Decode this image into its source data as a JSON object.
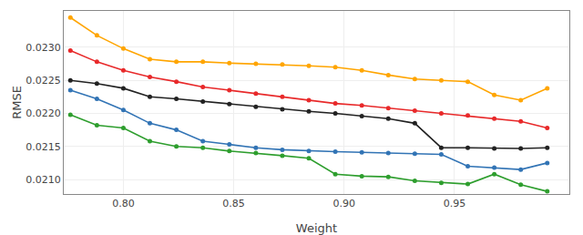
{
  "chart_data": {
    "type": "line",
    "xlabel": "Weight",
    "ylabel": "RMSE",
    "x": [
      0.776,
      0.788,
      0.8,
      0.812,
      0.824,
      0.836,
      0.848,
      0.86,
      0.872,
      0.884,
      0.896,
      0.908,
      0.92,
      0.932,
      0.944,
      0.956,
      0.968,
      0.98,
      0.992
    ],
    "series": [
      {
        "color": "#FFA500",
        "values": [
          0.02345,
          0.02318,
          0.02298,
          0.02282,
          0.02278,
          0.02278,
          0.02276,
          0.02275,
          0.02274,
          0.02272,
          0.0227,
          0.02265,
          0.02258,
          0.02252,
          0.0225,
          0.02248,
          0.02228,
          0.0222,
          0.02238
        ]
      },
      {
        "color": "#e8292a",
        "values": [
          0.02295,
          0.02278,
          0.02265,
          0.02255,
          0.02248,
          0.0224,
          0.02235,
          0.0223,
          0.02225,
          0.0222,
          0.02215,
          0.02212,
          0.02208,
          0.02204,
          0.022,
          0.02197,
          0.02192,
          0.02188,
          0.02178
        ]
      },
      {
        "color": "#222222",
        "values": [
          0.0225,
          0.02245,
          0.02238,
          0.02225,
          0.02222,
          0.02218,
          0.02214,
          0.0221,
          0.02206,
          0.02203,
          0.022,
          0.02196,
          0.02192,
          0.02185,
          0.02148,
          0.02148,
          0.02147,
          0.02147,
          0.02148
        ]
      },
      {
        "color": "#3274b5",
        "values": [
          0.02235,
          0.02222,
          0.02205,
          0.02185,
          0.02175,
          0.02158,
          0.02153,
          0.02148,
          0.02145,
          0.02143,
          0.02142,
          0.02141,
          0.0214,
          0.02139,
          0.02138,
          0.0212,
          0.02118,
          0.02115,
          0.02125
        ]
      },
      {
        "color": "#2e9e2e",
        "values": [
          0.02198,
          0.02182,
          0.02178,
          0.02158,
          0.0215,
          0.02148,
          0.02143,
          0.0214,
          0.02136,
          0.02132,
          0.02108,
          0.02105,
          0.02104,
          0.02098,
          0.02095,
          0.02093,
          0.02108,
          0.02092,
          0.02082
        ]
      }
    ],
    "xlim": [
      0.773,
      1.002
    ],
    "ylim": [
      0.02078,
      0.02355
    ],
    "xticks": [
      {
        "value": 0.8,
        "label": "0.80"
      },
      0.85,
      {
        "value": 0.9,
        "label": "0.90"
      },
      0.95
    ],
    "yticks": [
      {
        "value": 0.021,
        "label": "0.0210"
      },
      0.0215,
      {
        "value": 0.022,
        "label": "0.0220"
      },
      0.0225,
      {
        "value": 0.023,
        "label": "0.0230"
      }
    ],
    "marker": "circle",
    "grid": true
  }
}
